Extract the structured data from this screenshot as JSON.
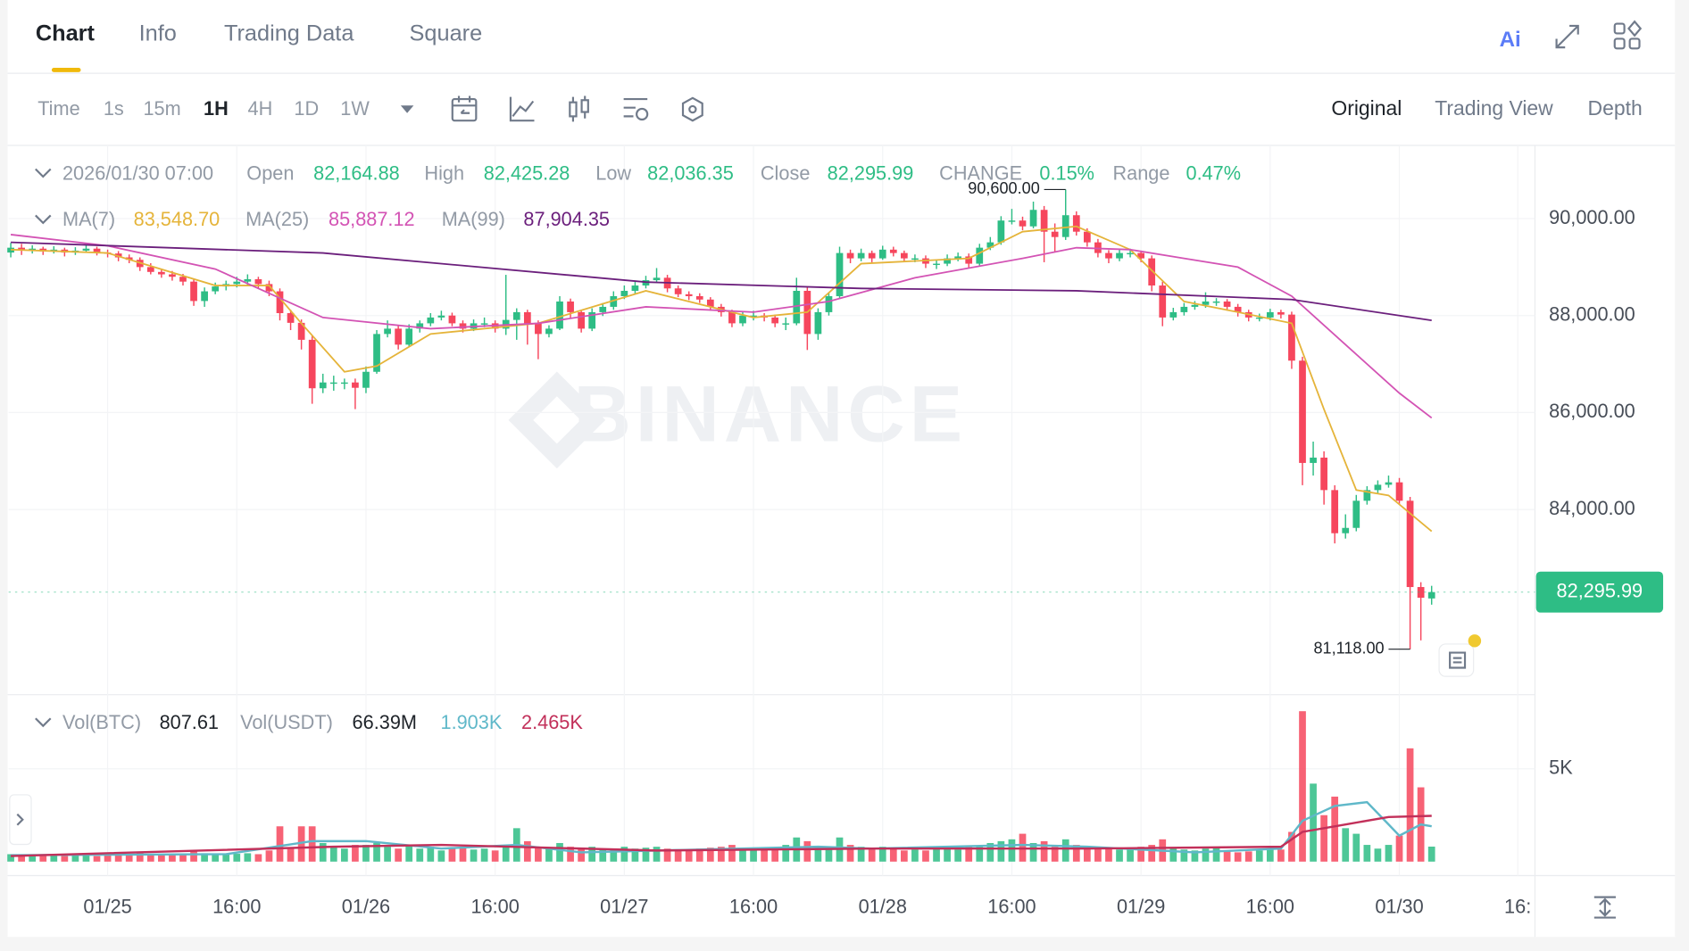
{
  "tabs": [
    "Chart",
    "Info",
    "Trading Data",
    "Square"
  ],
  "intervals": [
    "Time",
    "1s",
    "15m",
    "1H",
    "4H",
    "1D",
    "1W"
  ],
  "views": [
    "Original",
    "Trading View",
    "Depth"
  ],
  "chart_data": {
    "type": "candlestick",
    "watermark": "BINANCE",
    "header": {
      "time": "2026/01/30 07:00",
      "items": [
        {
          "name": "Open",
          "value": {
            "value": 82164.88,
            "label": "82,164.88"
          }
        },
        {
          "name": "High",
          "value": {
            "value": 82425.28,
            "label": "82,425.28"
          }
        },
        {
          "name": "Low",
          "value": {
            "value": 82036.35,
            "label": "82,036.35"
          }
        },
        {
          "name": "Close",
          "value": {
            "value": 82295.99,
            "label": "82,295.99"
          }
        },
        {
          "name": "CHANGE",
          "value": {
            "value": 0.15,
            "label": "0.15%"
          }
        },
        {
          "name": "Range",
          "value": {
            "value": 0.47,
            "label": "0.47%"
          }
        }
      ]
    },
    "up_color": "#2ebd85",
    "down_color": "#f6465d",
    "ylim": [
      80180,
      91510
    ],
    "yticks": [
      {
        "value": 84000,
        "label": "84,000.00"
      },
      {
        "value": 86000,
        "label": "86,000.00"
      },
      {
        "value": 88000,
        "label": "88,000.00"
      },
      {
        "value": 90000,
        "label": "90,000.00"
      }
    ],
    "xlim": [
      -0.2,
      141.6
    ],
    "xticks": [
      {
        "value": 9,
        "label": "01/25"
      },
      {
        "value": 21,
        "label": "16:00"
      },
      {
        "value": 33,
        "label": "01/26"
      },
      {
        "value": 45,
        "label": "16:00"
      },
      {
        "value": 57,
        "label": "01/27"
      },
      {
        "value": 69,
        "label": "16:00"
      },
      {
        "value": 81,
        "label": "01/28"
      },
      {
        "value": 93,
        "label": "16:00"
      },
      {
        "value": 105,
        "label": "01/29"
      },
      {
        "value": 117,
        "label": "16:00"
      },
      {
        "value": 129,
        "label": "01/30"
      },
      {
        "value": 140,
        "label": "16:"
      }
    ],
    "grid": true,
    "last_price": {
      "value": 82295.99,
      "label": "82,295.99"
    },
    "annotations": [
      {
        "x": 98,
        "value": {
          "value": 90600,
          "label": "90,600.00"
        }
      },
      {
        "x": 130,
        "value": {
          "value": 81118,
          "label": "81,118.00"
        }
      }
    ],
    "candles": [
      [
        89300,
        89500,
        89200,
        89400
      ],
      [
        89400,
        89480,
        89250,
        89350
      ],
      [
        89350,
        89450,
        89280,
        89380
      ],
      [
        89380,
        89420,
        89250,
        89320
      ],
      [
        89320,
        89430,
        89280,
        89360
      ],
      [
        89360,
        89400,
        89220,
        89300
      ],
      [
        89300,
        89410,
        89250,
        89340
      ],
      [
        89340,
        89460,
        89300,
        89380
      ],
      [
        89380,
        89420,
        89240,
        89300
      ],
      [
        89300,
        89360,
        89200,
        89280
      ],
      [
        89280,
        89330,
        89120,
        89200
      ],
      [
        89200,
        89260,
        89080,
        89150
      ],
      [
        89150,
        89200,
        88920,
        89000
      ],
      [
        89000,
        89080,
        88850,
        88900
      ],
      [
        88900,
        88960,
        88780,
        88850
      ],
      [
        88850,
        88920,
        88720,
        88800
      ],
      [
        88800,
        88860,
        88620,
        88700
      ],
      [
        88700,
        88760,
        88200,
        88300
      ],
      [
        88300,
        88580,
        88180,
        88500
      ],
      [
        88500,
        88680,
        88440,
        88600
      ],
      [
        88600,
        88720,
        88520,
        88650
      ],
      [
        88650,
        88800,
        88580,
        88700
      ],
      [
        88700,
        88850,
        88620,
        88750
      ],
      [
        88750,
        88800,
        88560,
        88650
      ],
      [
        88650,
        88720,
        88400,
        88500
      ],
      [
        88500,
        88560,
        87900,
        88050
      ],
      [
        88050,
        88120,
        87700,
        87850
      ],
      [
        87850,
        87920,
        87300,
        87500
      ],
      [
        87500,
        87600,
        86180,
        86500
      ],
      [
        86500,
        86800,
        86400,
        86620
      ],
      [
        86620,
        86760,
        86450,
        86620
      ],
      [
        86620,
        86700,
        86480,
        86620
      ],
      [
        86620,
        86700,
        86070,
        86510
      ],
      [
        86510,
        86950,
        86400,
        86840
      ],
      [
        86840,
        87700,
        86800,
        87620
      ],
      [
        87620,
        87900,
        87550,
        87730
      ],
      [
        87730,
        87800,
        87300,
        87400
      ],
      [
        87400,
        87820,
        87350,
        87730
      ],
      [
        87730,
        87900,
        87650,
        87840
      ],
      [
        87840,
        88050,
        87780,
        87960
      ],
      [
        87960,
        88100,
        87900,
        88000
      ],
      [
        88000,
        88060,
        87780,
        87840
      ],
      [
        87840,
        87900,
        87650,
        87730
      ],
      [
        87730,
        87920,
        87680,
        87840
      ],
      [
        87840,
        87960,
        87760,
        87840
      ],
      [
        87840,
        87900,
        87650,
        87730
      ],
      [
        87730,
        88840,
        87600,
        87910
      ],
      [
        87910,
        88150,
        87500,
        88070
      ],
      [
        88070,
        88120,
        87400,
        87840
      ],
      [
        87840,
        87900,
        87100,
        87620
      ],
      [
        87620,
        87800,
        87550,
        87730
      ],
      [
        87730,
        88400,
        87700,
        88290
      ],
      [
        88290,
        88350,
        87950,
        88070
      ],
      [
        88070,
        88120,
        87650,
        87730
      ],
      [
        87730,
        88150,
        87680,
        88070
      ],
      [
        88070,
        88260,
        87990,
        88180
      ],
      [
        88180,
        88500,
        88120,
        88400
      ],
      [
        88400,
        88620,
        88340,
        88510
      ],
      [
        88510,
        88700,
        88450,
        88620
      ],
      [
        88620,
        88820,
        88560,
        88730
      ],
      [
        88730,
        88980,
        88680,
        88780
      ],
      [
        88780,
        88840,
        88480,
        88560
      ],
      [
        88560,
        88620,
        88380,
        88440
      ],
      [
        88440,
        88500,
        88320,
        88400
      ],
      [
        88400,
        88460,
        88260,
        88330
      ],
      [
        88330,
        88380,
        88100,
        88180
      ],
      [
        88180,
        88240,
        87980,
        88070
      ],
      [
        88070,
        88120,
        87760,
        87840
      ],
      [
        87840,
        88080,
        87780,
        88000
      ],
      [
        88000,
        88100,
        87900,
        88000
      ],
      [
        88000,
        88050,
        87880,
        87960
      ],
      [
        87960,
        88020,
        87760,
        87840
      ],
      [
        87840,
        87960,
        87700,
        87840
      ],
      [
        87840,
        88780,
        87800,
        88510
      ],
      [
        88510,
        88600,
        87290,
        87620
      ],
      [
        87620,
        88150,
        87500,
        88070
      ],
      [
        88070,
        88480,
        88000,
        88400
      ],
      [
        88400,
        89420,
        88350,
        89290
      ],
      [
        89290,
        89360,
        89080,
        89180
      ],
      [
        89180,
        89380,
        89120,
        89290
      ],
      [
        89290,
        89340,
        89100,
        89180
      ],
      [
        89180,
        89440,
        89150,
        89360
      ],
      [
        89360,
        89420,
        89220,
        89290
      ],
      [
        89290,
        89340,
        89100,
        89180
      ],
      [
        89180,
        89260,
        89100,
        89180
      ],
      [
        89180,
        89240,
        88980,
        89070
      ],
      [
        89070,
        89160,
        88960,
        89070
      ],
      [
        89070,
        89260,
        89020,
        89180
      ],
      [
        89180,
        89300,
        89120,
        89220
      ],
      [
        89220,
        89280,
        88980,
        89070
      ],
      [
        89070,
        89480,
        89020,
        89400
      ],
      [
        89400,
        89620,
        89350,
        89510
      ],
      [
        89510,
        90050,
        89460,
        89960
      ],
      [
        89960,
        90200,
        89880,
        89960
      ],
      [
        89960,
        90040,
        89760,
        89840
      ],
      [
        89840,
        90350,
        89800,
        90180
      ],
      [
        90180,
        90260,
        89100,
        89730
      ],
      [
        89730,
        89900,
        89300,
        89620
      ],
      [
        89620,
        90600,
        89560,
        90070
      ],
      [
        90070,
        90150,
        89650,
        89730
      ],
      [
        89730,
        89800,
        89420,
        89510
      ],
      [
        89510,
        89580,
        89200,
        89290
      ],
      [
        89290,
        89350,
        89080,
        89180
      ],
      [
        89180,
        89380,
        89120,
        89290
      ],
      [
        89290,
        89380,
        89200,
        89290
      ],
      [
        89290,
        89340,
        89100,
        89180
      ],
      [
        89180,
        89240,
        88500,
        88620
      ],
      [
        88620,
        88700,
        87780,
        87960
      ],
      [
        87960,
        88160,
        87900,
        88070
      ],
      [
        88070,
        88260,
        88000,
        88180
      ],
      [
        88180,
        88300,
        88120,
        88220
      ],
      [
        88220,
        88480,
        88160,
        88290
      ],
      [
        88290,
        88360,
        88200,
        88290
      ],
      [
        88290,
        88340,
        88100,
        88180
      ],
      [
        88180,
        88240,
        87980,
        88070
      ],
      [
        88070,
        88120,
        87880,
        87960
      ],
      [
        87960,
        88040,
        87880,
        87960
      ],
      [
        87960,
        88140,
        87900,
        88070
      ],
      [
        88070,
        88120,
        87940,
        88020
      ],
      [
        88020,
        88080,
        86900,
        87070
      ],
      [
        87070,
        87150,
        84500,
        84960
      ],
      [
        84960,
        85400,
        84700,
        85070
      ],
      [
        85070,
        85200,
        84100,
        84400
      ],
      [
        84400,
        84500,
        83300,
        83510
      ],
      [
        83510,
        83900,
        83400,
        83620
      ],
      [
        83620,
        84300,
        83550,
        84180
      ],
      [
        84180,
        84480,
        84100,
        84400
      ],
      [
        84400,
        84600,
        84320,
        84510
      ],
      [
        84510,
        84700,
        84450,
        84560
      ],
      [
        84560,
        84650,
        84100,
        84180
      ],
      [
        84180,
        84260,
        81118,
        82400
      ],
      [
        82400,
        82500,
        81300,
        82180
      ],
      [
        82164.88,
        82425.28,
        82036.35,
        82295.99
      ]
    ],
    "ma_lines": [
      {
        "name": "MA(7)",
        "color": "#e5b43a",
        "current": {
          "value": 83548.7,
          "label": "83,548.70"
        },
        "x": [
          0,
          9,
          19,
          24,
          27,
          31,
          34,
          39,
          49,
          59,
          69,
          74,
          79,
          89,
          94,
          99,
          104,
          109,
          114,
          119,
          122,
          125,
          128,
          132
        ],
        "values": [
          89360,
          89290,
          88620,
          88620,
          87840,
          86840,
          86960,
          87620,
          87840,
          88510,
          87960,
          88070,
          89070,
          89180,
          89730,
          89840,
          89360,
          88290,
          88070,
          87840,
          86070,
          84400,
          84290,
          83550
        ]
      },
      {
        "name": "MA(25)",
        "color": "#d353b4",
        "current": {
          "value": 85887.12,
          "label": "85,887.12"
        },
        "x": [
          0,
          9,
          19,
          29,
          39,
          49,
          59,
          69,
          76,
          84,
          94,
          99,
          104,
          109,
          114,
          119,
          124,
          129,
          132
        ],
        "values": [
          89670,
          89440,
          88960,
          87960,
          87730,
          87840,
          88180,
          88070,
          88290,
          88780,
          89180,
          89400,
          89360,
          89180,
          89000,
          88400,
          87400,
          86400,
          85890
        ]
      },
      {
        "name": "MA(99)",
        "color": "#6b1f7c",
        "current": {
          "value": 87904.35,
          "label": "87,904.35"
        },
        "x": [
          0,
          29,
          59,
          79,
          99,
          119,
          132
        ],
        "values": [
          89510,
          89290,
          88690,
          88560,
          88510,
          88330,
          87900
        ]
      }
    ],
    "volume": {
      "ylim": [
        0,
        8700
      ],
      "yticks": [
        {
          "value": 5000,
          "label": "5K"
        }
      ],
      "header": [
        {
          "name": "Vol(BTC)",
          "value": {
            "value": 807.61,
            "label": "807.61"
          }
        },
        {
          "name": "Vol(USDT)",
          "value": {
            "value": 66390000,
            "label": "66.39M"
          }
        }
      ],
      "values": [
        400,
        350,
        380,
        300,
        350,
        320,
        330,
        360,
        300,
        400,
        450,
        380,
        500,
        420,
        380,
        400,
        350,
        600,
        450,
        400,
        380,
        420,
        450,
        400,
        600,
        1900,
        700,
        1900,
        1900,
        1000,
        800,
        700,
        900,
        900,
        1000,
        800,
        700,
        900,
        700,
        800,
        600,
        700,
        800,
        650,
        700,
        600,
        900,
        1800,
        1100,
        800,
        700,
        1000,
        800,
        700,
        800,
        700,
        650,
        800,
        700,
        750,
        800,
        700,
        650,
        600,
        700,
        750,
        800,
        900,
        700,
        600,
        650,
        700,
        900,
        1300,
        1100,
        800,
        700,
        1300,
        900,
        800,
        750,
        800,
        700,
        600,
        650,
        600,
        700,
        700,
        650,
        800,
        800,
        1000,
        1100,
        1200,
        1500,
        1000,
        1100,
        800,
        1200,
        900,
        800,
        750,
        700,
        650,
        700,
        800,
        900,
        1200,
        700,
        650,
        600,
        700,
        800,
        600,
        500,
        550,
        600,
        700,
        650,
        1600,
        8100,
        4200,
        2500,
        3500,
        1800,
        1500,
        900,
        700,
        900,
        1400,
        6100,
        4000,
        807.61
      ],
      "ma_lines": [
        {
          "color": "#5fb8c9",
          "current": {
            "value": 1903,
            "label": "1.903K"
          },
          "x": [
            0,
            20,
            28,
            33,
            40,
            47,
            53,
            75,
            80,
            94,
            100,
            110,
            118,
            120,
            123,
            126,
            128,
            129,
            131,
            132
          ],
          "values": [
            350,
            400,
            1100,
            1100,
            700,
            900,
            500,
            800,
            700,
            900,
            800,
            500,
            700,
            2200,
            3000,
            3200,
            2000,
            1400,
            2000,
            1903
          ]
        },
        {
          "color": "#c2305a",
          "current": {
            "value": 2465,
            "label": "2.465K"
          },
          "x": [
            0,
            30,
            40,
            60,
            80,
            100,
            118,
            120,
            124,
            128,
            132
          ],
          "values": [
            300,
            800,
            900,
            600,
            700,
            700,
            800,
            1600,
            2000,
            2400,
            2465
          ]
        }
      ]
    }
  }
}
